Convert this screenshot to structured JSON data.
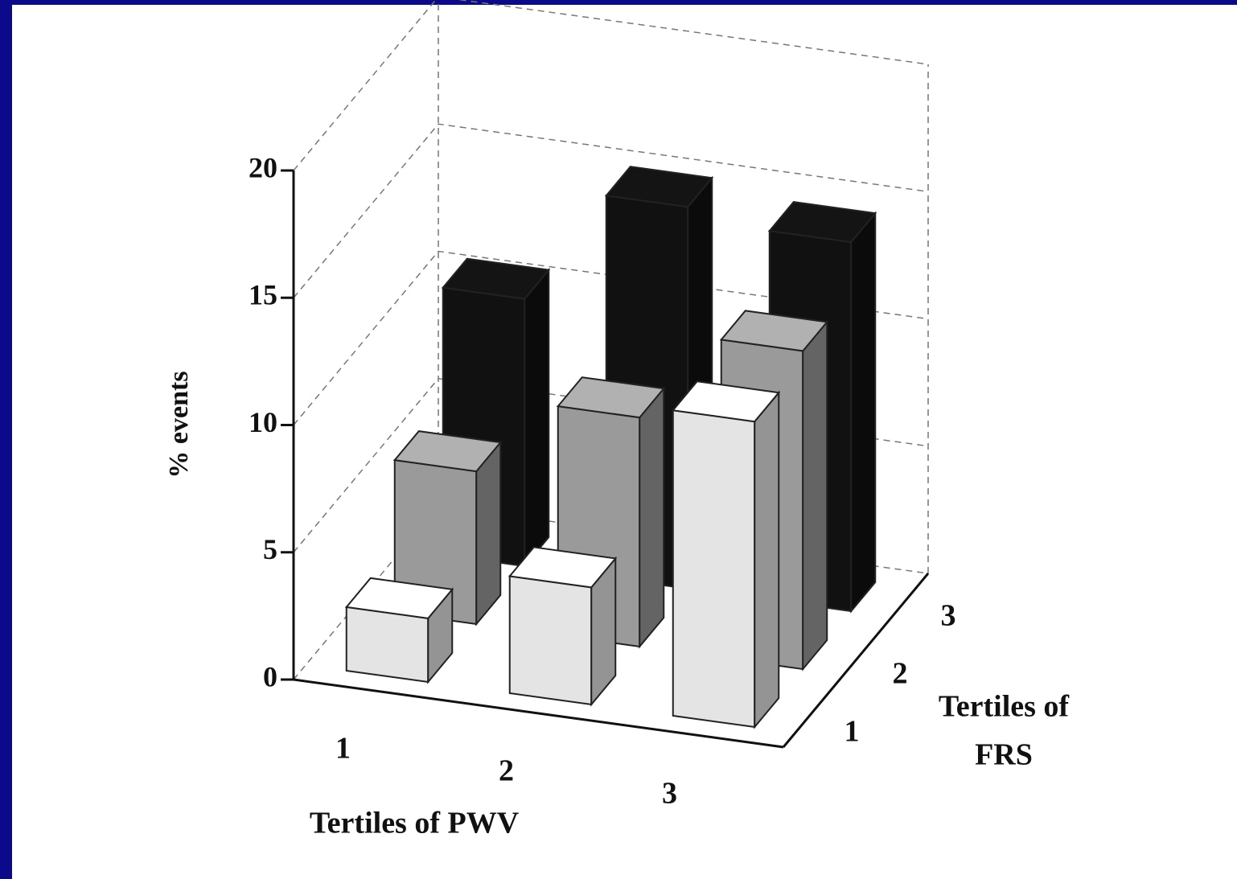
{
  "chart_data": {
    "type": "bar3d",
    "y_label": "% events",
    "x_label": "Tertiles of PWV",
    "z_label_lines": [
      "Tertiles of",
      "FRS"
    ],
    "categories": [
      "1",
      "2",
      "3"
    ],
    "series": [
      {
        "name": "1",
        "color": "#e4e4e4",
        "values": [
          2.5,
          4.6,
          12
        ]
      },
      {
        "name": "2",
        "color": "#9a9a9a",
        "values": [
          6,
          9,
          12.5
        ]
      },
      {
        "name": "3",
        "color": "#111111",
        "values": [
          10.5,
          15,
          14.5
        ]
      }
    ],
    "ylim": [
      0,
      20
    ],
    "yticks": [
      0,
      5,
      10,
      15,
      20
    ],
    "grid": true
  }
}
